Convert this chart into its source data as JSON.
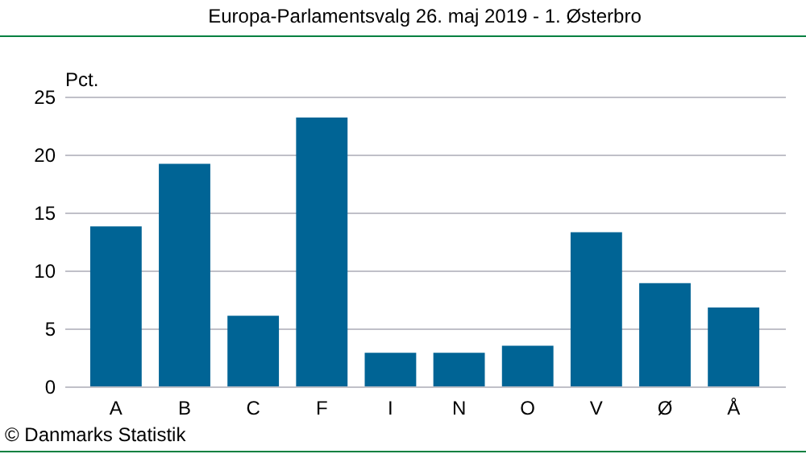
{
  "chart_data": {
    "type": "bar",
    "title": "Europa-Parlamentsvalg 26. maj 2019 - 1. Østerbro",
    "ylabel": "Pct.",
    "categories": [
      "A",
      "B",
      "C",
      "F",
      "I",
      "N",
      "O",
      "V",
      "Ø",
      "Å"
    ],
    "values": [
      13.8,
      19.2,
      6.1,
      23.2,
      2.9,
      2.9,
      3.5,
      13.3,
      8.9,
      6.8
    ],
    "color": "#006495",
    "ylim": [
      0,
      25
    ],
    "yticks": [
      0,
      5,
      10,
      15,
      20,
      25
    ],
    "grid": "y",
    "annotations": [
      "© Danmarks Statistik"
    ]
  }
}
